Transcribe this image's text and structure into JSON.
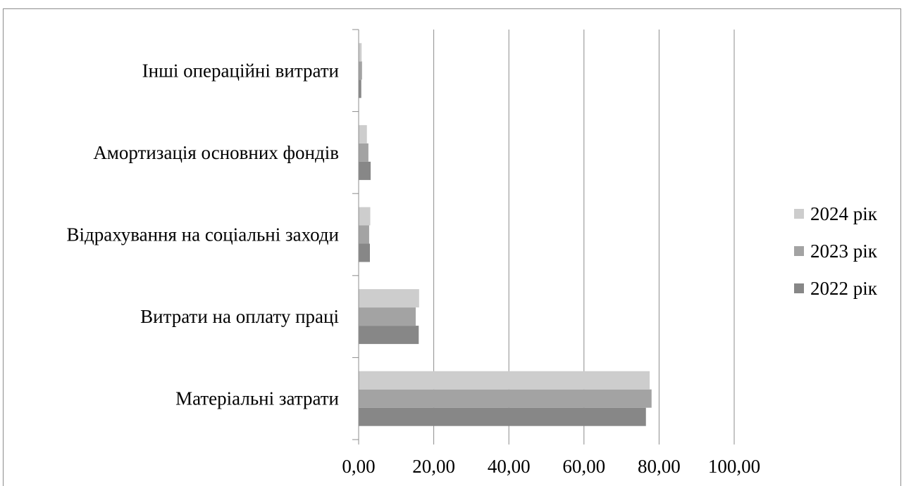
{
  "chart_data": {
    "type": "bar",
    "orientation": "horizontal",
    "categories": [
      "Матеріальні затрати",
      "Витрати на оплату праці",
      "Відрахування на соціальні заходи",
      "Амортизація основних фондів",
      "Інші операційні витрати"
    ],
    "series": [
      {
        "name": "2022 рік",
        "color": "#878787",
        "values": [
          76.5,
          16.0,
          3.0,
          3.2,
          0.7
        ]
      },
      {
        "name": "2023 рік",
        "color": "#a3a3a3",
        "values": [
          78.0,
          15.2,
          2.8,
          2.6,
          0.9
        ]
      },
      {
        "name": "2024 рік",
        "color": "#cdcdcd",
        "values": [
          77.5,
          16.1,
          3.1,
          2.2,
          0.8
        ]
      }
    ],
    "x_ticks": [
      "0,00",
      "20,00",
      "40,00",
      "60,00",
      "80,00",
      "100,00"
    ],
    "xlim": [
      0,
      100
    ],
    "grid": "vertical major gridlines",
    "legend_position": "right",
    "legend_order": [
      "2024 рік",
      "2023 рік",
      "2022 рік"
    ]
  }
}
